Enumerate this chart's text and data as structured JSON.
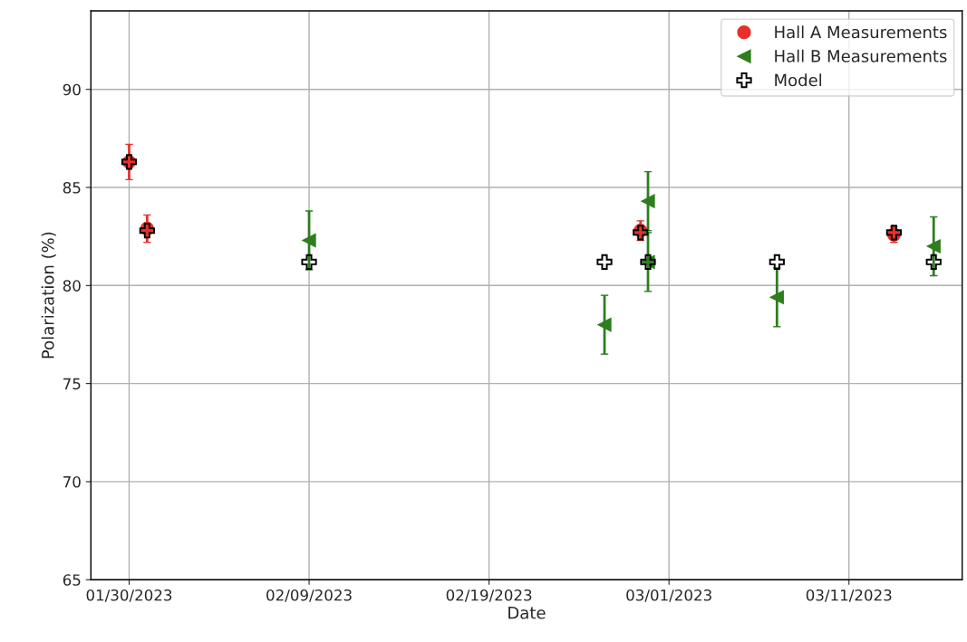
{
  "chart_data": {
    "type": "scatter",
    "xlabel": "Date",
    "ylabel": "Polarization (%)",
    "xlim": [
      "2023-01-27T21:00",
      "2023-03-17T07:00"
    ],
    "ylim": [
      65,
      94
    ],
    "xticks": [
      {
        "value": "2023-01-30",
        "label": "01/30/2023"
      },
      {
        "value": "2023-02-09",
        "label": "02/09/2023"
      },
      {
        "value": "2023-02-19",
        "label": "02/19/2023"
      },
      {
        "value": "2023-03-01",
        "label": "03/01/2023"
      },
      {
        "value": "2023-03-11",
        "label": "03/11/2023"
      }
    ],
    "yticks": [
      65,
      70,
      75,
      80,
      85,
      90
    ],
    "grid": true,
    "legend": "top right",
    "series": [
      {
        "name": "Hall A Measurements",
        "color": "#e8302a",
        "marker": "circle",
        "x": [
          "2023-01-30T00:00",
          "2023-01-31T00:00",
          "2023-02-27T10:00",
          "2023-03-13T12:00"
        ],
        "values": [
          86.3,
          82.9,
          82.8,
          82.6
        ],
        "errors": [
          0.9,
          0.7,
          0.5,
          0.4
        ]
      },
      {
        "name": "Hall B Measurements",
        "color": "#2e7d1f",
        "marker": "triangle",
        "x": [
          "2023-02-09T00:00",
          "2023-02-25T10:00",
          "2023-02-27T20:00",
          "2023-02-27T20:00",
          "2023-03-07T00:00",
          "2023-03-15T17:00"
        ],
        "values": [
          82.3,
          78.0,
          84.3,
          81.2,
          79.4,
          82.0
        ],
        "errors": [
          1.5,
          1.5,
          1.5,
          1.5,
          1.5,
          1.5
        ]
      },
      {
        "name": "Model",
        "color": "#000000",
        "marker": "cross",
        "x": [
          "2023-01-30T00:00",
          "2023-01-31T00:00",
          "2023-02-09T00:00",
          "2023-02-25T10:00",
          "2023-02-27T10:00",
          "2023-02-27T20:00",
          "2023-03-07T00:00",
          "2023-03-13T12:00",
          "2023-03-15T17:00"
        ],
        "values": [
          86.3,
          82.8,
          81.2,
          81.2,
          82.7,
          81.2,
          81.2,
          82.7,
          81.2
        ]
      }
    ]
  }
}
